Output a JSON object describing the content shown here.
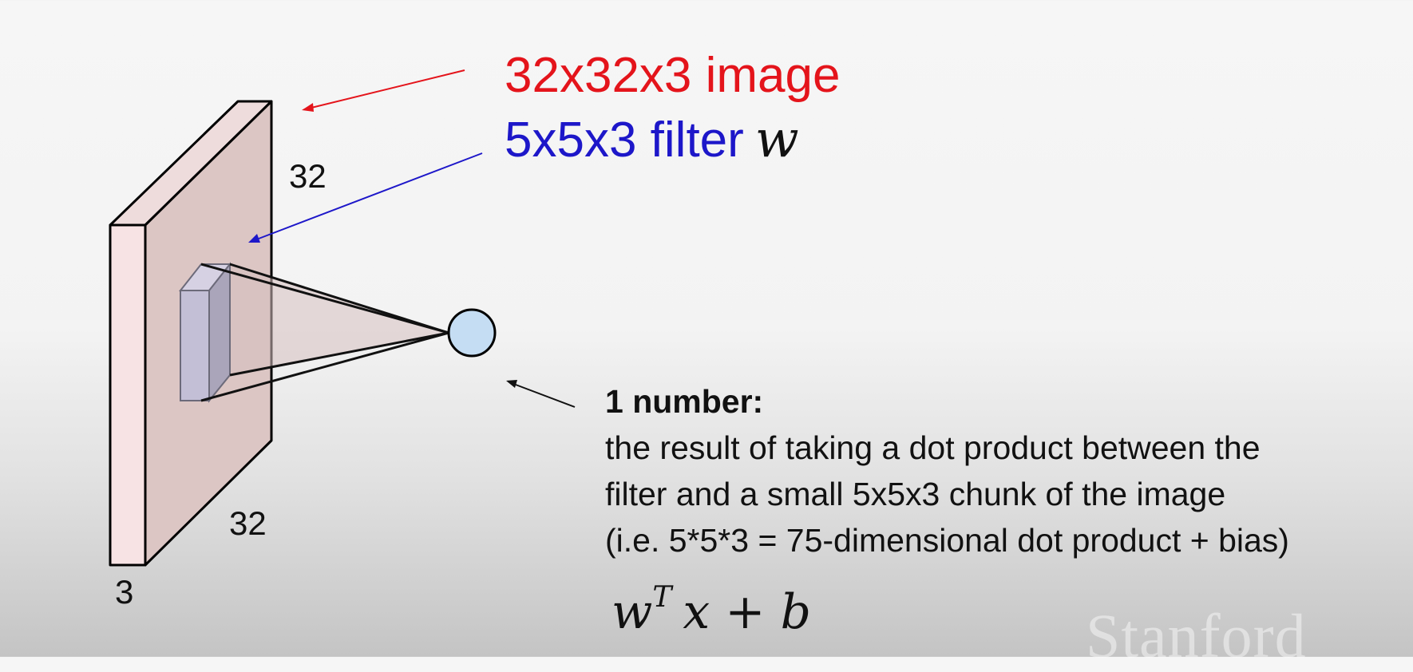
{
  "labels": {
    "image": "32x32x3 image",
    "filter": "5x5x3 filter",
    "filter_var": "w",
    "dim_top": "32",
    "dim_bottom": "32",
    "dim_depth": "3"
  },
  "note": {
    "title": "1 number:",
    "lines": [
      "the result of taking a dot product between the",
      "filter and a small 5x5x3 chunk of the image",
      "(i.e. 5*5*3 = 75-dimensional dot product + bias)"
    ],
    "formula_base": "w",
    "formula_sup": "T",
    "formula_rest": "x + b"
  },
  "watermark": "Stanford",
  "colors": {
    "image_label": "#e4141b",
    "filter_label": "#1d17c9",
    "volume_front": "#f7e3e4",
    "volume_side": "#dcc6c4",
    "filter_face": "#c3bfd6",
    "neuron": "#c5ddf3"
  }
}
